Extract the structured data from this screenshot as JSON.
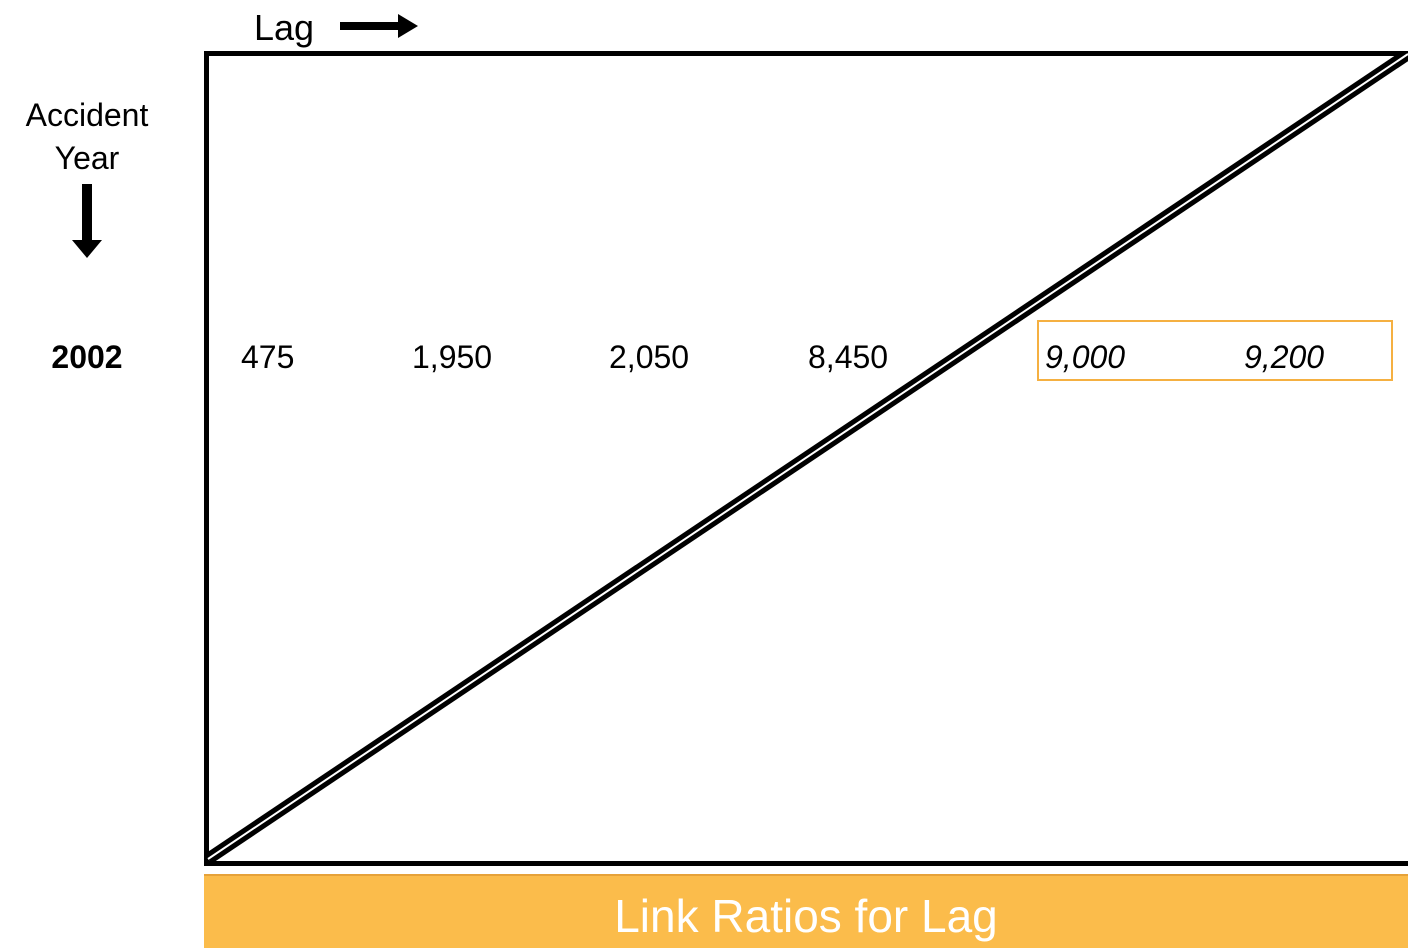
{
  "header": {
    "lag_label": "Lag"
  },
  "side": {
    "accident_year_line1": "Accident",
    "accident_year_line2": "Year",
    "year": "2002"
  },
  "row": {
    "values": [
      "475",
      "1,950",
      "2,050",
      "8,450"
    ],
    "projected_values": [
      "9,000",
      "9,200"
    ]
  },
  "footer": {
    "title": "Link Ratios for Lag"
  },
  "colors": {
    "highlight_border": "#f5b041",
    "footer_background": "#fbbc4b",
    "footer_text": "#ffffff",
    "frame": "#000000"
  },
  "icons": {
    "lag_arrow": "right-arrow-icon",
    "accident_year_arrow": "down-arrow-icon"
  }
}
